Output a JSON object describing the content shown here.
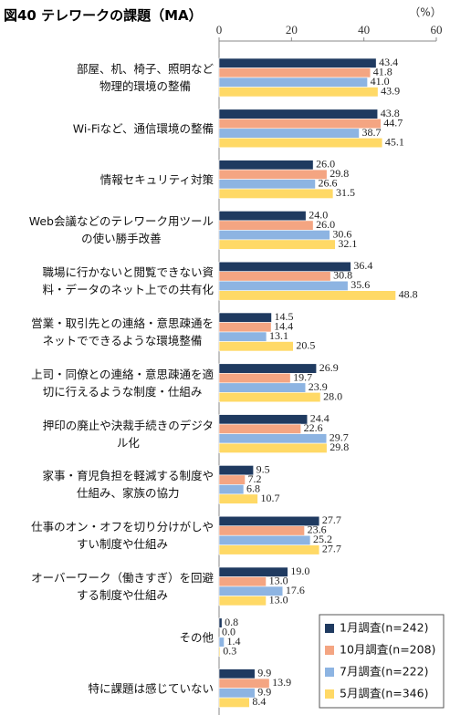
{
  "chart_data": {
    "type": "bar",
    "orientation": "horizontal",
    "title": "図40 テレワークの課題（MA）",
    "unit_label": "（%）",
    "categories": [
      "部屋、机、椅子、照明など\n物理的環境の整備",
      "Wi-Fiなど、通信環境の整備",
      "情報セキュリティ対策",
      "Web会議などのテレワーク用ツール\nの使い勝手改善",
      "職場に行かないと閲覧できない資\n料・データのネット上での共有化",
      "営業・取引先との連絡・意思疎通を\nネットでできるような環境整備",
      "上司・同僚との連絡・意思疎通を適\n切に行えるような制度・仕組み",
      "押印の廃止や決裁手続きのデジタ\nル化",
      "家事・育児負担を軽減する制度や\n仕組み、家族の協力",
      "仕事のオン・オフを切り分けがしや\nすい制度や仕組み",
      "オーバーワーク（働きすぎ）を回避\nする制度や仕組み",
      "その他",
      "特に課題は感じていない"
    ],
    "series": [
      {
        "name": "1月調査(n=242)",
        "color": "#1f3a60",
        "values": [
          43.4,
          43.8,
          26.0,
          24.0,
          36.4,
          14.5,
          26.9,
          24.4,
          9.5,
          27.7,
          19.0,
          0.8,
          9.9
        ],
        "value_labels": [
          "43.4",
          "43.8",
          "26.0",
          "24.0",
          "36.4",
          "14.5",
          "26.9",
          "24.4",
          "9.5",
          "27.7",
          "19.0",
          "0.8",
          "9.9"
        ]
      },
      {
        "name": "10月調査(n=208)",
        "color": "#f4a582",
        "values": [
          41.8,
          44.7,
          29.8,
          26.0,
          30.8,
          14.4,
          19.7,
          22.6,
          7.2,
          23.6,
          13.0,
          0.0,
          13.9
        ],
        "value_labels": [
          "41.8",
          "44.7",
          "29.8",
          "26.0",
          "30.8",
          "14.4",
          "19.7",
          "22.6",
          "7.2",
          "23.6",
          "13.0",
          "0.0",
          "13.9"
        ]
      },
      {
        "name": "7月調査(n=222)",
        "color": "#8db4e2",
        "values": [
          41.0,
          38.7,
          26.6,
          30.6,
          35.6,
          13.1,
          23.9,
          29.7,
          6.8,
          25.2,
          17.6,
          1.4,
          9.9
        ],
        "value_labels": [
          "41.0",
          "38.7",
          "26.6",
          "30.6",
          "35.6",
          "13.1",
          "23.9",
          "29.7",
          "6.8",
          "25.2",
          "17.6",
          "1.4",
          "9.9"
        ]
      },
      {
        "name": "5月調査(n=346)",
        "color": "#ffd966",
        "values": [
          43.9,
          45.1,
          31.5,
          32.1,
          48.8,
          20.5,
          28.0,
          29.8,
          10.7,
          27.7,
          13.0,
          0.3,
          8.4
        ],
        "value_labels": [
          "43.9",
          "45.1",
          "31.5",
          "32.1",
          "48.8",
          "20.5",
          "28.0",
          "29.8",
          "10.7",
          "27.7",
          "13.0",
          "0.3",
          "8.4"
        ]
      }
    ],
    "xlim": [
      0,
      60
    ],
    "xticks": [
      0,
      20,
      40,
      60
    ],
    "grid": false,
    "legend": "lower right"
  }
}
